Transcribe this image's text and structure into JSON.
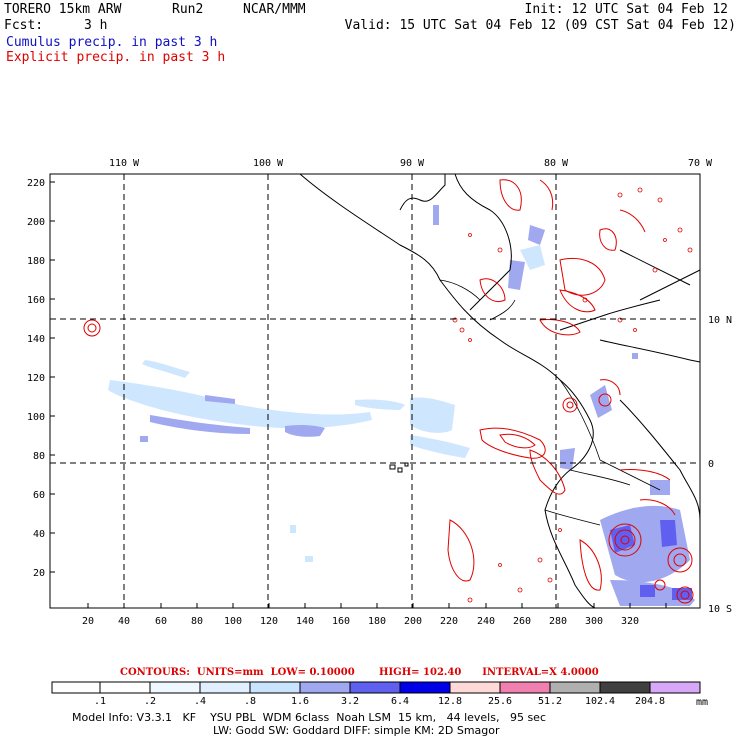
{
  "header": {
    "model": "TORERO 15km ARW",
    "run": "Run2",
    "center": "NCAR/MMM",
    "init": "Init: 12 UTC Sat 04 Feb 12",
    "fcst_label": "Fcst:",
    "fcst_value": "3 h",
    "valid": "Valid: 15 UTC Sat 04 Feb 12 (09 CST Sat 04 Feb 12)",
    "legend_cumulus": "Cumulus precip. in past 3 h",
    "legend_explicit": "Explicit precip. in past 3 h"
  },
  "colors": {
    "cumulus_text": "#1010c0",
    "explicit_text": "#e00000",
    "contour": "#e00000"
  },
  "map": {
    "lon_labels": [
      "110 W",
      "100 W",
      "90 W",
      "80 W",
      "70 W"
    ],
    "lat_labels_right": [
      "10 N",
      "0",
      "10 S"
    ],
    "x_ticks": [
      "20",
      "40",
      "60",
      "80",
      "100",
      "120",
      "140",
      "160",
      "180",
      "200",
      "220",
      "240",
      "260",
      "280",
      "300",
      "320"
    ],
    "y_ticks": [
      "20",
      "40",
      "60",
      "80",
      "100",
      "120",
      "140",
      "160",
      "180",
      "200",
      "220"
    ]
  },
  "contour_info": {
    "label": "CONTOURS:",
    "units": "UNITS=mm",
    "low": "LOW= 0.10000",
    "high": "HIGH= 102.40",
    "interval": "INTERVAL=X 4.0000"
  },
  "colorbar": {
    "labels": [
      ".1",
      ".2",
      ".4",
      ".8",
      "1.6",
      "3.2",
      "6.4",
      "12.8",
      "25.6",
      "51.2",
      "102.4",
      "204.8"
    ],
    "unit": "mm",
    "colors": [
      "#ffffff",
      "#ffffff",
      "#f0f8ff",
      "#e0f0ff",
      "#c8e4ff",
      "#a0a8f0",
      "#6060f0",
      "#0000e8",
      "#ffd8d8",
      "#f080b0",
      "#b0b0b0",
      "#404040",
      "#d8a8f8"
    ]
  },
  "model_info": {
    "line1": "Model Info: V3.3.1   KF    YSU PBL  WDM 6class  Noah LSM  15 km,   44 levels,   95 sec",
    "line2": "LW: Godd SW: Goddard DIFF: simple KM: 2D Smagor"
  }
}
